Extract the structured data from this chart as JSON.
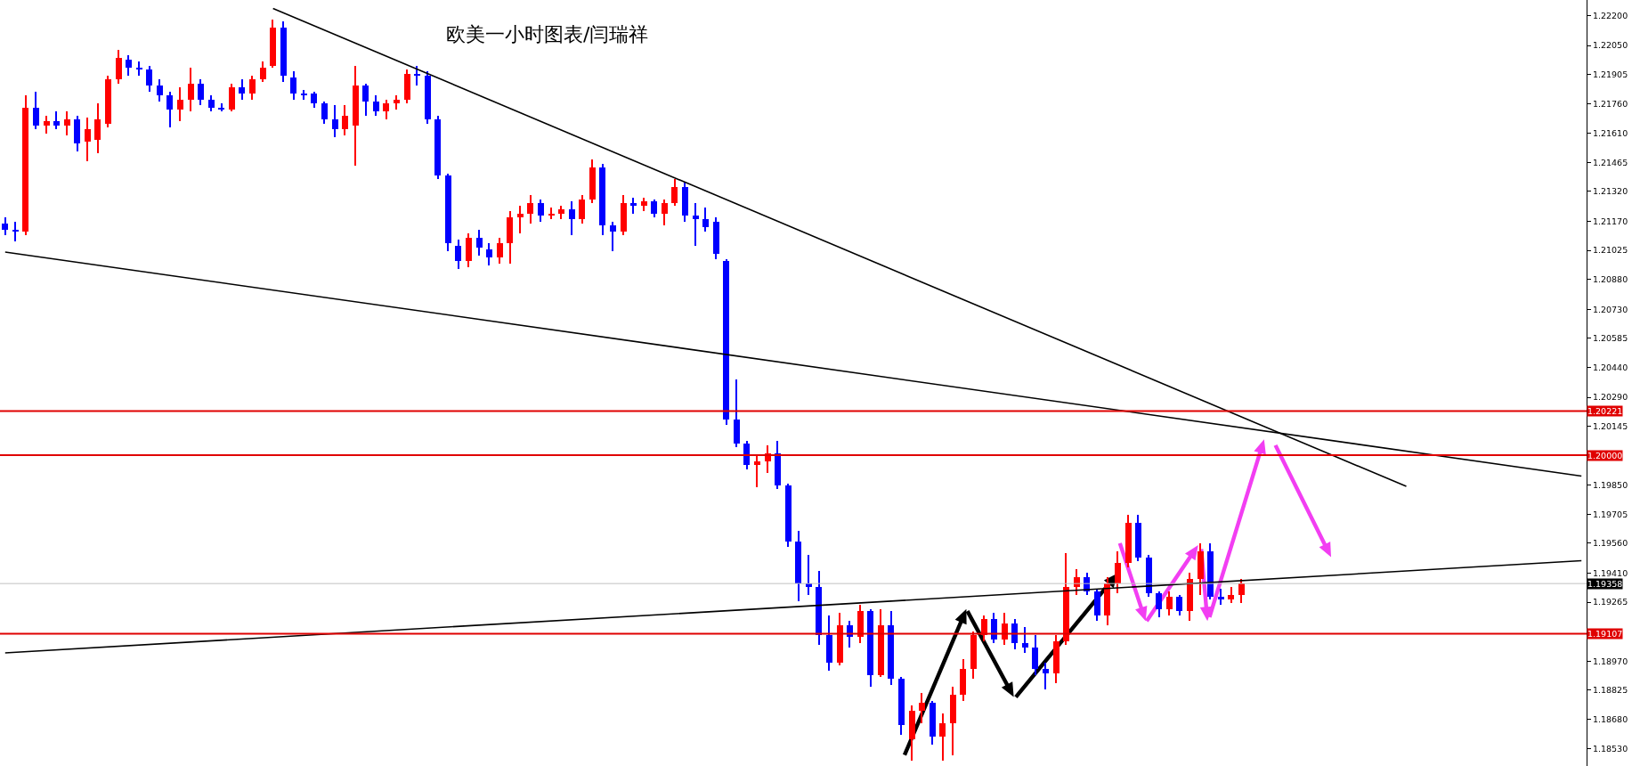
{
  "chart_data": {
    "type": "candlestick",
    "title": "欧美一小时图表/闫瑞祥",
    "categories": [
      null,
      null,
      null,
      null,
      null,
      null,
      null,
      null,
      null,
      null,
      null,
      null,
      null,
      null,
      null,
      null,
      null,
      null,
      null,
      null,
      null,
      null,
      null,
      null,
      null,
      null,
      null,
      null,
      null,
      null,
      null,
      null,
      null,
      null,
      null,
      null,
      null,
      null,
      null,
      null,
      null,
      null,
      null,
      null,
      null,
      null,
      null,
      null,
      null,
      null,
      null,
      null,
      null,
      null,
      null,
      null,
      null,
      null,
      null,
      null,
      null,
      null,
      null,
      null,
      null,
      null,
      null,
      null,
      null,
      null,
      null,
      null,
      null,
      null,
      null,
      null,
      null,
      null,
      null,
      null,
      null,
      null,
      null,
      null,
      null,
      null,
      null,
      null,
      null,
      null,
      null,
      null,
      null,
      null,
      null,
      null,
      null,
      null,
      null,
      null,
      null,
      null,
      null,
      null,
      null,
      null,
      null,
      null,
      null,
      null,
      null,
      null,
      null,
      null,
      null,
      null,
      null,
      null,
      null,
      null,
      null,
      null,
      null,
      null,
      null,
      null,
      null,
      null,
      null,
      null,
      null,
      null,
      null,
      null,
      null,
      null,
      null,
      null,
      null,
      null,
      null,
      null,
      null,
      null,
      null,
      null,
      null,
      null,
      null,
      null,
      null,
      null,
      null,
      null
    ],
    "ohlc": [
      [
        1.2116,
        1.2119,
        1.211,
        1.2113
      ],
      [
        1.2113,
        1.2117,
        1.2107,
        1.2112
      ],
      [
        1.2112,
        1.218,
        1.211,
        1.2174
      ],
      [
        1.2174,
        1.2182,
        1.2163,
        1.2165
      ],
      [
        1.2165,
        1.217,
        1.2161,
        1.2167
      ],
      [
        1.2167,
        1.2172,
        1.2163,
        1.2165
      ],
      [
        1.2165,
        1.2172,
        1.216,
        1.2168
      ],
      [
        1.2168,
        1.217,
        1.2152,
        1.2156
      ],
      [
        1.2157,
        1.2169,
        1.2147,
        1.2163
      ],
      [
        1.2158,
        1.2176,
        1.2151,
        1.2168
      ],
      [
        1.2166,
        1.219,
        1.2164,
        1.2188
      ],
      [
        1.2188,
        1.2203,
        1.2186,
        1.2199
      ],
      [
        1.2198,
        1.22,
        1.219,
        1.2194
      ],
      [
        1.2194,
        1.2197,
        1.219,
        1.2193
      ],
      [
        1.2193,
        1.2195,
        1.2182,
        1.2185
      ],
      [
        1.2185,
        1.2188,
        1.2177,
        1.218
      ],
      [
        1.218,
        1.2182,
        1.2164,
        1.2173
      ],
      [
        1.2173,
        1.2184,
        1.2167,
        1.2178
      ],
      [
        1.2178,
        1.2194,
        1.2172,
        1.2186
      ],
      [
        1.2186,
        1.2188,
        1.2175,
        1.2178
      ],
      [
        1.2178,
        1.218,
        1.2172,
        1.2174
      ],
      [
        1.2174,
        1.2176,
        1.2172,
        1.2173
      ],
      [
        1.2173,
        1.2186,
        1.2172,
        1.2184
      ],
      [
        1.2184,
        1.2188,
        1.2178,
        1.2181
      ],
      [
        1.2181,
        1.219,
        1.2178,
        1.2188
      ],
      [
        1.2188,
        1.2197,
        1.2187,
        1.2194
      ],
      [
        1.2195,
        1.2218,
        1.2194,
        1.2214
      ],
      [
        1.2214,
        1.2217,
        1.2187,
        1.219
      ],
      [
        1.2189,
        1.2192,
        1.2178,
        1.2181
      ],
      [
        1.2181,
        1.2183,
        1.2178,
        1.218
      ],
      [
        1.2181,
        1.2182,
        1.2174,
        1.2176
      ],
      [
        1.2176,
        1.2177,
        1.2166,
        1.2168
      ],
      [
        1.2168,
        1.2175,
        1.2159,
        1.2163
      ],
      [
        1.2163,
        1.2175,
        1.216,
        1.217
      ],
      [
        1.2165,
        1.2195,
        1.2145,
        1.2185
      ],
      [
        1.2185,
        1.2186,
        1.217,
        1.2177
      ],
      [
        1.2177,
        1.218,
        1.217,
        1.2172
      ],
      [
        1.2172,
        1.2178,
        1.2168,
        1.2176
      ],
      [
        1.2176,
        1.218,
        1.2173,
        1.2178
      ],
      [
        1.2178,
        1.2193,
        1.2176,
        1.2191
      ],
      [
        1.2191,
        1.2195,
        1.2185,
        1.219
      ],
      [
        1.219,
        1.2192,
        1.2166,
        1.2168
      ],
      [
        1.2168,
        1.217,
        1.2138,
        1.214
      ],
      [
        1.214,
        1.2141,
        1.2102,
        1.2106
      ],
      [
        1.2105,
        1.2108,
        1.2093,
        1.2097
      ],
      [
        1.2097,
        1.2111,
        1.2094,
        1.2109
      ],
      [
        1.2109,
        1.2113,
        1.21,
        1.2104
      ],
      [
        1.2103,
        1.2106,
        1.2095,
        1.2099
      ],
      [
        1.2099,
        1.2109,
        1.2096,
        1.2106
      ],
      [
        1.2106,
        1.2122,
        1.2096,
        1.2119
      ],
      [
        1.2119,
        1.2125,
        1.2111,
        1.2121
      ],
      [
        1.2121,
        1.213,
        1.2116,
        1.2126
      ],
      [
        1.2126,
        1.2128,
        1.2117,
        1.212
      ],
      [
        1.212,
        1.2124,
        1.2118,
        1.2121
      ],
      [
        1.2121,
        1.2125,
        1.2118,
        1.2123
      ],
      [
        1.2123,
        1.2127,
        1.211,
        1.2118
      ],
      [
        1.2118,
        1.213,
        1.2116,
        1.2128
      ],
      [
        1.2128,
        1.2148,
        1.2126,
        1.2144
      ],
      [
        1.2144,
        1.2146,
        1.211,
        1.2115
      ],
      [
        1.2115,
        1.2117,
        1.2102,
        1.2112
      ],
      [
        1.2112,
        1.213,
        1.211,
        1.2126
      ],
      [
        1.2126,
        1.2129,
        1.2121,
        1.2125
      ],
      [
        1.2125,
        1.2129,
        1.2122,
        1.2127
      ],
      [
        1.2127,
        1.2128,
        1.2119,
        1.2121
      ],
      [
        1.2121,
        1.2128,
        1.2115,
        1.2126
      ],
      [
        1.2126,
        1.2138,
        1.2125,
        1.2134
      ],
      [
        1.2134,
        1.2137,
        1.2117,
        1.212
      ],
      [
        1.212,
        1.2126,
        1.2105,
        1.2118
      ],
      [
        1.2118,
        1.2124,
        1.2112,
        1.2114
      ],
      [
        1.2117,
        1.2119,
        1.2098,
        1.2101
      ],
      [
        1.2097,
        1.2098,
        1.2015,
        1.2018
      ],
      [
        1.2018,
        1.2038,
        1.2004,
        1.2006
      ],
      [
        1.2006,
        1.2007,
        1.1993,
        1.1995
      ],
      [
        1.1995,
        1.2,
        1.1984,
        1.1997
      ],
      [
        1.1997,
        1.2005,
        1.1991,
        1.2001
      ],
      [
        1.2001,
        1.2007,
        1.1983,
        1.1985
      ],
      [
        1.1985,
        1.1986,
        1.1954,
        1.1957
      ],
      [
        1.1957,
        1.1962,
        1.1927,
        1.1936
      ],
      [
        1.1936,
        1.195,
        1.193,
        1.1934
      ],
      [
        1.1934,
        1.1942,
        1.1905,
        1.191
      ],
      [
        1.191,
        1.192,
        1.1892,
        1.1896
      ],
      [
        1.1896,
        1.1921,
        1.1895,
        1.1915
      ],
      [
        1.1915,
        1.1917,
        1.1904,
        1.1909
      ],
      [
        1.1909,
        1.1925,
        1.1906,
        1.1922
      ],
      [
        1.1922,
        1.1923,
        1.1884,
        1.189
      ],
      [
        1.189,
        1.1923,
        1.1889,
        1.1915
      ],
      [
        1.1915,
        1.1922,
        1.1885,
        1.1888
      ],
      [
        1.1888,
        1.1889,
        1.186,
        1.1865
      ],
      [
        1.1858,
        1.1875,
        1.1847,
        1.1872
      ],
      [
        1.1872,
        1.1881,
        1.1866,
        1.1876
      ],
      [
        1.1876,
        1.1877,
        1.1855,
        1.1859
      ],
      [
        1.1859,
        1.1871,
        1.1847,
        1.1866
      ],
      [
        1.1866,
        1.1884,
        1.185,
        1.188
      ],
      [
        1.188,
        1.1898,
        1.1877,
        1.1893
      ],
      [
        1.1893,
        1.1912,
        1.1888,
        1.191
      ],
      [
        1.191,
        1.192,
        1.1907,
        1.1918
      ],
      [
        1.1918,
        1.1921,
        1.1906,
        1.1908
      ],
      [
        1.1908,
        1.1921,
        1.1905,
        1.1916
      ],
      [
        1.1916,
        1.1918,
        1.1903,
        1.1906
      ],
      [
        1.1906,
        1.1914,
        1.1901,
        1.1904
      ],
      [
        1.1904,
        1.191,
        1.189,
        1.1893
      ],
      [
        1.1893,
        1.1896,
        1.1883,
        1.1891
      ],
      [
        1.1891,
        1.191,
        1.1886,
        1.1907
      ],
      [
        1.1907,
        1.1951,
        1.1905,
        1.1934
      ],
      [
        1.1934,
        1.1943,
        1.193,
        1.1939
      ],
      [
        1.1939,
        1.1941,
        1.193,
        1.1932
      ],
      [
        1.1932,
        1.1933,
        1.1917,
        1.192
      ],
      [
        1.192,
        1.1939,
        1.1915,
        1.1936
      ],
      [
        1.1936,
        1.1952,
        1.1931,
        1.1946
      ],
      [
        1.1946,
        1.197,
        1.1944,
        1.1966
      ],
      [
        1.1966,
        1.197,
        1.1947,
        1.1949
      ],
      [
        1.1949,
        1.195,
        1.1929,
        1.1931
      ],
      [
        1.1931,
        1.1932,
        1.1919,
        1.1923
      ],
      [
        1.1923,
        1.1932,
        1.192,
        1.1929
      ],
      [
        1.1929,
        1.193,
        1.192,
        1.1922
      ],
      [
        1.1922,
        1.1941,
        1.1917,
        1.1938
      ],
      [
        1.1938,
        1.1956,
        1.193,
        1.1952
      ],
      [
        1.1952,
        1.1956,
        1.1928,
        1.1929
      ],
      [
        1.1929,
        1.1933,
        1.1925,
        1.1928
      ],
      [
        1.1928,
        1.1934,
        1.1926,
        1.193
      ],
      [
        1.193,
        1.1938,
        1.1926,
        1.1936
      ],
      null,
      null,
      null,
      null,
      null,
      null,
      null,
      null,
      null,
      null,
      null,
      null,
      null,
      null,
      null,
      null,
      null,
      null,
      null,
      null,
      null,
      null,
      null,
      null,
      null,
      null,
      null,
      null,
      null,
      null,
      null,
      null,
      null
    ],
    "colors": [
      "#0000ff",
      "#0000ff",
      "#ff0000",
      "#0000ff",
      "#ff0000",
      "#0000ff",
      "#ff0000",
      "#0000ff",
      "#ff0000",
      "#ff0000",
      "#ff0000",
      "#ff0000",
      "#0000ff",
      "#0000ff",
      "#0000ff",
      "#0000ff",
      "#0000ff",
      "#ff0000",
      "#ff0000",
      "#0000ff",
      "#0000ff",
      "#0000ff",
      "#ff0000",
      "#0000ff",
      "#ff0000",
      "#ff0000",
      "#ff0000",
      "#0000ff",
      "#0000ff",
      "#0000ff",
      "#0000ff",
      "#0000ff",
      "#0000ff",
      "#ff0000",
      "#ff0000",
      "#0000ff",
      "#0000ff",
      "#ff0000",
      "#ff0000",
      "#ff0000",
      "#0000ff",
      "#0000ff",
      "#0000ff",
      "#0000ff",
      "#0000ff",
      "#ff0000",
      "#0000ff",
      "#0000ff",
      "#ff0000",
      "#ff0000",
      "#ff0000",
      "#ff0000",
      "#0000ff",
      "#ff0000",
      "#ff0000",
      "#0000ff",
      "#ff0000",
      "#ff0000",
      "#0000ff",
      "#0000ff",
      "#ff0000",
      "#0000ff",
      "#ff0000",
      "#0000ff",
      "#ff0000",
      "#ff0000",
      "#0000ff",
      "#0000ff",
      "#0000ff",
      "#0000ff",
      "#0000ff",
      "#0000ff",
      "#0000ff",
      "#ff0000",
      "#ff0000",
      "#0000ff",
      "#0000ff",
      "#0000ff",
      "#0000ff",
      "#0000ff",
      "#0000ff",
      "#ff0000",
      "#0000ff",
      "#ff0000",
      "#0000ff",
      "#ff0000",
      "#0000ff",
      "#0000ff",
      "#ff0000",
      "#ff0000",
      "#0000ff",
      "#ff0000",
      "#ff0000",
      "#ff0000",
      "#ff0000",
      "#ff0000",
      "#0000ff",
      "#ff0000",
      "#0000ff",
      "#0000ff",
      "#0000ff",
      "#0000ff",
      "#ff0000",
      "#ff0000",
      "#ff0000",
      "#0000ff",
      "#0000ff",
      "#ff0000",
      "#ff0000",
      "#ff0000",
      "#0000ff",
      "#0000ff",
      "#0000ff",
      "#ff0000",
      "#0000ff",
      "#ff0000",
      "#ff0000",
      "#0000ff",
      "#0000ff",
      "#ff0000",
      "#ff0000",
      null,
      null,
      null,
      null,
      null,
      null,
      null,
      null,
      null,
      null,
      null,
      null,
      null,
      null,
      null,
      null,
      null,
      null,
      null,
      null,
      null,
      null,
      null,
      null,
      null,
      null,
      null,
      null,
      null,
      null,
      null,
      null,
      null
    ],
    "series": [
      {
        "type": "line",
        "color": "#000000",
        "values": [
          null,
          null,
          null,
          null,
          null,
          null,
          null,
          null,
          null,
          null,
          null,
          null,
          null,
          null,
          null,
          null,
          null,
          null,
          null,
          null,
          null,
          null,
          null,
          null,
          null,
          null,
          1.22236,
          null,
          null,
          null,
          null,
          null,
          null,
          null,
          null,
          null,
          null,
          null,
          null,
          null,
          null,
          null,
          null,
          null,
          null,
          null,
          null,
          null,
          null,
          null,
          null,
          null,
          null,
          null,
          null,
          null,
          null,
          null,
          null,
          null,
          null,
          null,
          null,
          null,
          null,
          null,
          null,
          null,
          null,
          null,
          null,
          null,
          null,
          null,
          null,
          null,
          null,
          null,
          null,
          null,
          null,
          null,
          null,
          null,
          null,
          null,
          null,
          null,
          null,
          null,
          null,
          null,
          null,
          null,
          null,
          null,
          null,
          null,
          null,
          null,
          null,
          null,
          null,
          null,
          null,
          null,
          null,
          null,
          null,
          null,
          null,
          null,
          null,
          null,
          null,
          null,
          null,
          null,
          null,
          null,
          null,
          null,
          null,
          null,
          null,
          null,
          null,
          null,
          null,
          null,
          null,
          null,
          null,
          null,
          null,
          null,
          1.19844,
          null,
          null,
          null,
          null,
          null,
          null,
          null,
          null,
          null,
          null,
          null,
          null,
          null,
          null,
          null,
          null,
          null
        ]
      },
      {
        "type": "line",
        "color": "#000000",
        "values": [
          1.21017,
          null,
          null,
          null,
          null,
          null,
          null,
          null,
          null,
          null,
          null,
          null,
          null,
          null,
          null,
          null,
          null,
          null,
          null,
          null,
          null,
          null,
          null,
          null,
          null,
          null,
          null,
          null,
          null,
          null,
          null,
          null,
          null,
          null,
          null,
          null,
          null,
          null,
          null,
          null,
          null,
          null,
          null,
          null,
          null,
          null,
          null,
          null,
          null,
          null,
          null,
          null,
          null,
          null,
          null,
          null,
          null,
          null,
          null,
          null,
          null,
          null,
          null,
          null,
          null,
          null,
          null,
          null,
          null,
          null,
          null,
          null,
          null,
          null,
          null,
          null,
          null,
          null,
          null,
          null,
          null,
          null,
          null,
          null,
          null,
          null,
          null,
          null,
          null,
          null,
          null,
          null,
          null,
          null,
          null,
          null,
          null,
          null,
          null,
          null,
          null,
          null,
          null,
          null,
          null,
          null,
          null,
          null,
          null,
          null,
          null,
          null,
          null,
          null,
          null,
          null,
          null,
          null,
          null,
          null,
          null,
          null,
          null,
          null,
          null,
          null,
          null,
          null,
          null,
          null,
          null,
          null,
          null,
          null,
          null,
          null,
          null,
          null,
          null,
          null,
          null,
          null,
          null,
          null,
          null,
          null,
          null,
          null,
          null,
          null,
          null,
          null,
          null,
          1.19896
        ]
      },
      {
        "type": "line",
        "color": "#000000",
        "values": [
          1.19011,
          null,
          null,
          null,
          null,
          null,
          null,
          null,
          null,
          null,
          null,
          null,
          null,
          null,
          null,
          null,
          null,
          null,
          null,
          null,
          null,
          null,
          null,
          null,
          null,
          null,
          null,
          null,
          null,
          null,
          null,
          null,
          null,
          null,
          null,
          null,
          null,
          null,
          null,
          null,
          null,
          null,
          null,
          null,
          null,
          null,
          null,
          null,
          null,
          null,
          null,
          null,
          null,
          null,
          null,
          null,
          null,
          null,
          null,
          null,
          null,
          null,
          null,
          null,
          null,
          null,
          null,
          null,
          null,
          null,
          null,
          null,
          null,
          null,
          null,
          null,
          null,
          null,
          null,
          null,
          null,
          null,
          null,
          null,
          null,
          null,
          null,
          null,
          null,
          null,
          null,
          null,
          null,
          null,
          null,
          null,
          null,
          null,
          null,
          null,
          null,
          null,
          null,
          null,
          null,
          null,
          null,
          null,
          null,
          null,
          null,
          null,
          null,
          null,
          null,
          null,
          null,
          null,
          null,
          null,
          null,
          null,
          null,
          null,
          null,
          null,
          null,
          null,
          null,
          null,
          null,
          null,
          null,
          null,
          null,
          null,
          null,
          null,
          null,
          null,
          null,
          null,
          null,
          null,
          null,
          null,
          null,
          null,
          null,
          null,
          null,
          null,
          null,
          1.19472
        ]
      }
    ],
    "ylim": [
      1.18445,
      1.22278
    ],
    "yticks": [
      {
        "value": 1.222,
        "label": "1.22200"
      },
      {
        "value": 1.2205,
        "label": "1.22050"
      },
      {
        "value": 1.21905,
        "label": "1.21905"
      },
      {
        "value": 1.2176,
        "label": "1.21760"
      },
      {
        "value": 1.2161,
        "label": "1.21610"
      },
      {
        "value": 1.21465,
        "label": "1.21465"
      },
      {
        "value": 1.2132,
        "label": "1.21320"
      },
      {
        "value": 1.2117,
        "label": "1.21170"
      },
      {
        "value": 1.21025,
        "label": "1.21025"
      },
      {
        "value": 1.2088,
        "label": "1.20880"
      },
      {
        "value": 1.2073,
        "label": "1.20730"
      },
      {
        "value": 1.20585,
        "label": "1.20585"
      },
      {
        "value": 1.2044,
        "label": "1.20440"
      },
      {
        "value": 1.2029,
        "label": "1.20290"
      },
      {
        "value": 1.20145,
        "label": "1.20145"
      },
      {
        "value": 1.1985,
        "label": "1.19850"
      },
      {
        "value": 1.19705,
        "label": "1.19705"
      },
      {
        "value": 1.1956,
        "label": "1.19560"
      },
      {
        "value": 1.1941,
        "label": "1.19410"
      },
      {
        "value": 1.19265,
        "label": "1.19265"
      },
      {
        "value": 1.1897,
        "label": "1.18970"
      },
      {
        "value": 1.18825,
        "label": "1.18825"
      },
      {
        "value": 1.1868,
        "label": "1.18680"
      },
      {
        "value": 1.1853,
        "label": "1.18530"
      }
    ],
    "ref_lines": [
      {
        "axis": "y",
        "value": 1.20221,
        "label": "1.20221",
        "color": "#e00000"
      },
      {
        "axis": "y",
        "value": 1.2,
        "label": "1.20000",
        "color": "#e00000"
      },
      {
        "axis": "y",
        "value": 1.19358,
        "label": "1.19358",
        "color": "#c0c0c0"
      },
      {
        "axis": "y",
        "value": 1.19107,
        "label": "1.19107",
        "color": "#e00000"
      }
    ],
    "grid": false,
    "tick_labels": "y"
  }
}
